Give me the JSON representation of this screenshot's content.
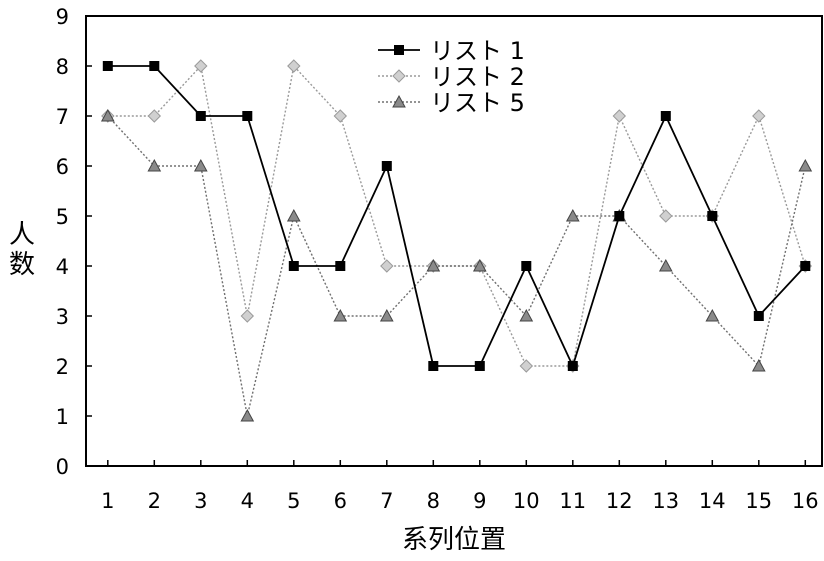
{
  "chart_data": {
    "type": "line",
    "title": "",
    "xlabel": "系列位置",
    "ylabel": "人数",
    "categories": [
      "1",
      "2",
      "3",
      "4",
      "5",
      "6",
      "7",
      "8",
      "9",
      "10",
      "11",
      "12",
      "13",
      "14",
      "15",
      "16"
    ],
    "ylim": [
      0,
      9
    ],
    "yticks": [
      "0",
      "1",
      "2",
      "3",
      "4",
      "5",
      "6",
      "7",
      "8",
      "9"
    ],
    "grid": false,
    "legend_position": "top-center",
    "series": [
      {
        "name": "リスト 1",
        "marker": "square",
        "line_style": "solid",
        "color": "#000000",
        "values": [
          8,
          8,
          7,
          7,
          4,
          4,
          6,
          2,
          2,
          4,
          2,
          5,
          7,
          5,
          3,
          4
        ]
      },
      {
        "name": "リスト 2",
        "marker": "diamond",
        "line_style": "dotted",
        "color": "#9a9a9a",
        "values": [
          7,
          7,
          8,
          3,
          8,
          7,
          4,
          4,
          4,
          2,
          2,
          7,
          5,
          5,
          7,
          4
        ]
      },
      {
        "name": "リスト 5",
        "marker": "triangle",
        "line_style": "dotted",
        "color": "#707070",
        "values": [
          7,
          6,
          6,
          1,
          5,
          3,
          3,
          4,
          4,
          3,
          5,
          5,
          4,
          3,
          2,
          6
        ]
      }
    ]
  }
}
